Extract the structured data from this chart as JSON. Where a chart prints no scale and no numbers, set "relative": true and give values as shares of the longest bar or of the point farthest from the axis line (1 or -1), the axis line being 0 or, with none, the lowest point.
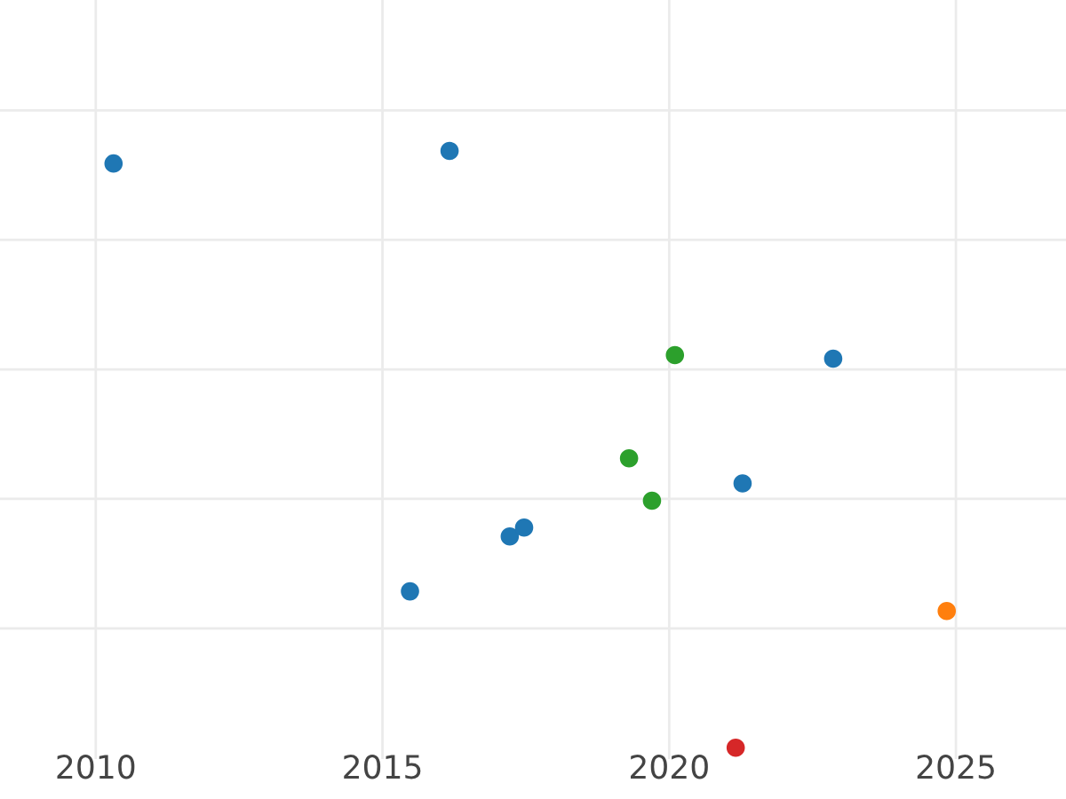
{
  "chart_data": {
    "type": "scatter",
    "relative": true,
    "xlim": [
      2008.33,
      2026.92
    ],
    "xticks": [
      2010,
      2015,
      2020,
      2025
    ],
    "tick_labels": "x",
    "grid": true,
    "marker": "circle",
    "series": [
      {
        "color": "#1f77b4",
        "x": [
          2010.31,
          2016.17,
          2015.48,
          2017.22,
          2017.47,
          2021.28,
          2022.86
        ],
        "values": [
          0.979,
          1,
          0.262,
          0.354,
          0.369,
          0.443,
          0.652
        ]
      },
      {
        "color": "#2ca02c",
        "x": [
          2019.3,
          2019.7,
          2020.1
        ],
        "values": [
          0.485,
          0.414,
          0.658
        ]
      },
      {
        "color": "#ff7f0e",
        "x": [
          2024.84
        ],
        "values": [
          0.229
        ]
      },
      {
        "color": "#d62728",
        "x": [
          2021.16
        ],
        "values": [
          0
        ]
      }
    ]
  }
}
